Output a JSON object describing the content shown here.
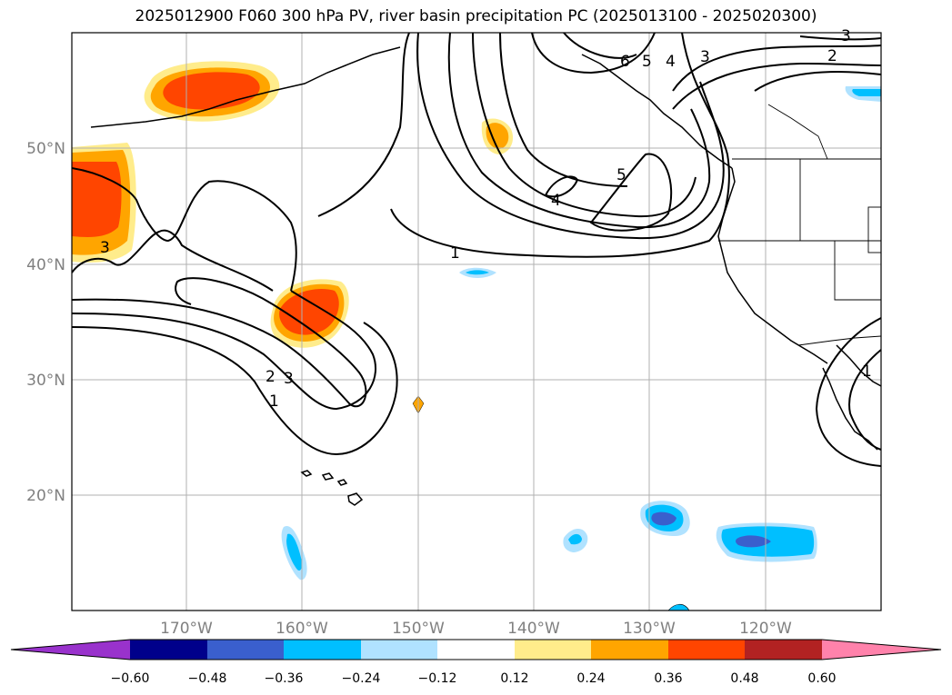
{
  "title": "2025012900 F060 300 hPa PV, river basin precipitation PC (2025013100 - 2025020300)",
  "latitude_labels": [
    "50°N",
    "40°N",
    "30°N",
    "20°N"
  ],
  "longitude_labels": [
    "170°W",
    "160°W",
    "150°W",
    "140°W",
    "130°W",
    "120°W"
  ],
  "contour_labels": {
    "one_north": "1",
    "four_center": "4",
    "five_center": "5",
    "six_alaska": "6",
    "five_alaska": "5",
    "four_alaska": "4",
    "three_alaska": "3",
    "two_ne": "2",
    "three_top": "3",
    "three_west": "3",
    "two_mid": "2",
    "three_mid": "3",
    "one_mid": "1",
    "one_east": "1"
  },
  "colorbar": {
    "ticks": [
      "−0.60",
      "−0.48",
      "−0.36",
      "−0.24",
      "−0.12",
      "0.12",
      "0.24",
      "0.36",
      "0.48",
      "0.60"
    ],
    "colors": [
      "#9932cc",
      "#00008b",
      "#3a5fcd",
      "#00bfff",
      "#b0e2ff",
      "#ffffff",
      "#ffec8b",
      "#ffa500",
      "#ff4500",
      "#b22222",
      "#ff82ab"
    ]
  },
  "shading_colors": {
    "pos_low": "#ffec8b",
    "pos_mid": "#ffa500",
    "pos_high": "#ff4500",
    "neg_low": "#b0e2ff",
    "neg_mid": "#00bfff",
    "neg_high": "#3a5fcd"
  }
}
